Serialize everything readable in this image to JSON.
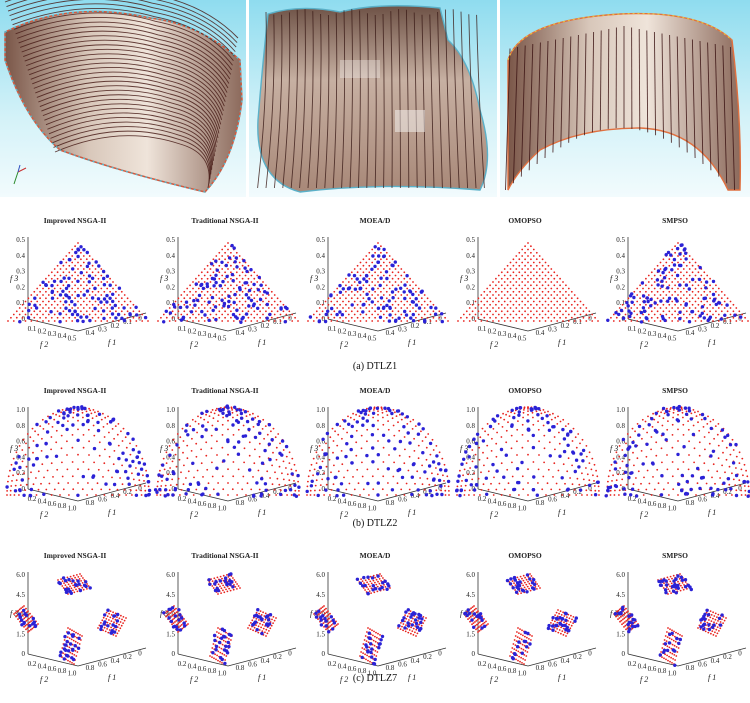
{
  "panels": [
    {
      "caption": "(a) DTLZ1",
      "problem": "DTLZ1",
      "f3_ticks": [
        "0.5",
        "0.4",
        "0.3",
        "0.2",
        "0.1",
        "0"
      ],
      "f2_ticks": [
        "0.1",
        "0.2",
        "0.3",
        "0.4",
        "0.5"
      ],
      "f1_ticks": [
        "0.4",
        "0.3",
        "0.2",
        "0.1",
        "0"
      ]
    },
    {
      "caption": "(b) DTLZ2",
      "problem": "DTLZ2",
      "f3_ticks": [
        "1.0",
        "0.8",
        "0.6",
        "0.4",
        "0.2",
        "0"
      ],
      "f2_ticks": [
        "0.2",
        "0.4",
        "0.6",
        "0.8",
        "1.0"
      ],
      "f1_ticks": [
        "0.8",
        "0.6",
        "0.4",
        "0.2",
        "0"
      ]
    },
    {
      "caption": "(c) DTLZ7",
      "problem": "DTLZ7",
      "f3_ticks": [
        "6.0",
        "4.5",
        "3.0",
        "1.5",
        "0"
      ],
      "f2_ticks": [
        "0.2",
        "0.4",
        "0.6",
        "0.8",
        "1.0"
      ],
      "f1_ticks": [
        "0.8",
        "0.6",
        "0.4",
        "0.2",
        "0"
      ]
    }
  ],
  "algorithms": [
    "Improved NSGA-II",
    "Traditional NSGA-II",
    "MOEA/D",
    "OMOPSO",
    "SMPSO"
  ],
  "axis_labels": {
    "f1": "f 1",
    "f2": "f 2",
    "f3": "f 3"
  },
  "colors": {
    "reference_front": "#e8231e",
    "obtained_solutions": "#2b22d6",
    "surface_base": "#c9b3a3",
    "background_sky": "#a8e4f2"
  },
  "chart_data": {
    "type": "scatter",
    "grid_layout": "3 rows (problems) x 5 columns (algorithms)",
    "series": [
      {
        "name": "reference front",
        "marker": "small red dots"
      },
      {
        "name": "obtained solutions",
        "marker": "blue dots"
      }
    ]
  }
}
